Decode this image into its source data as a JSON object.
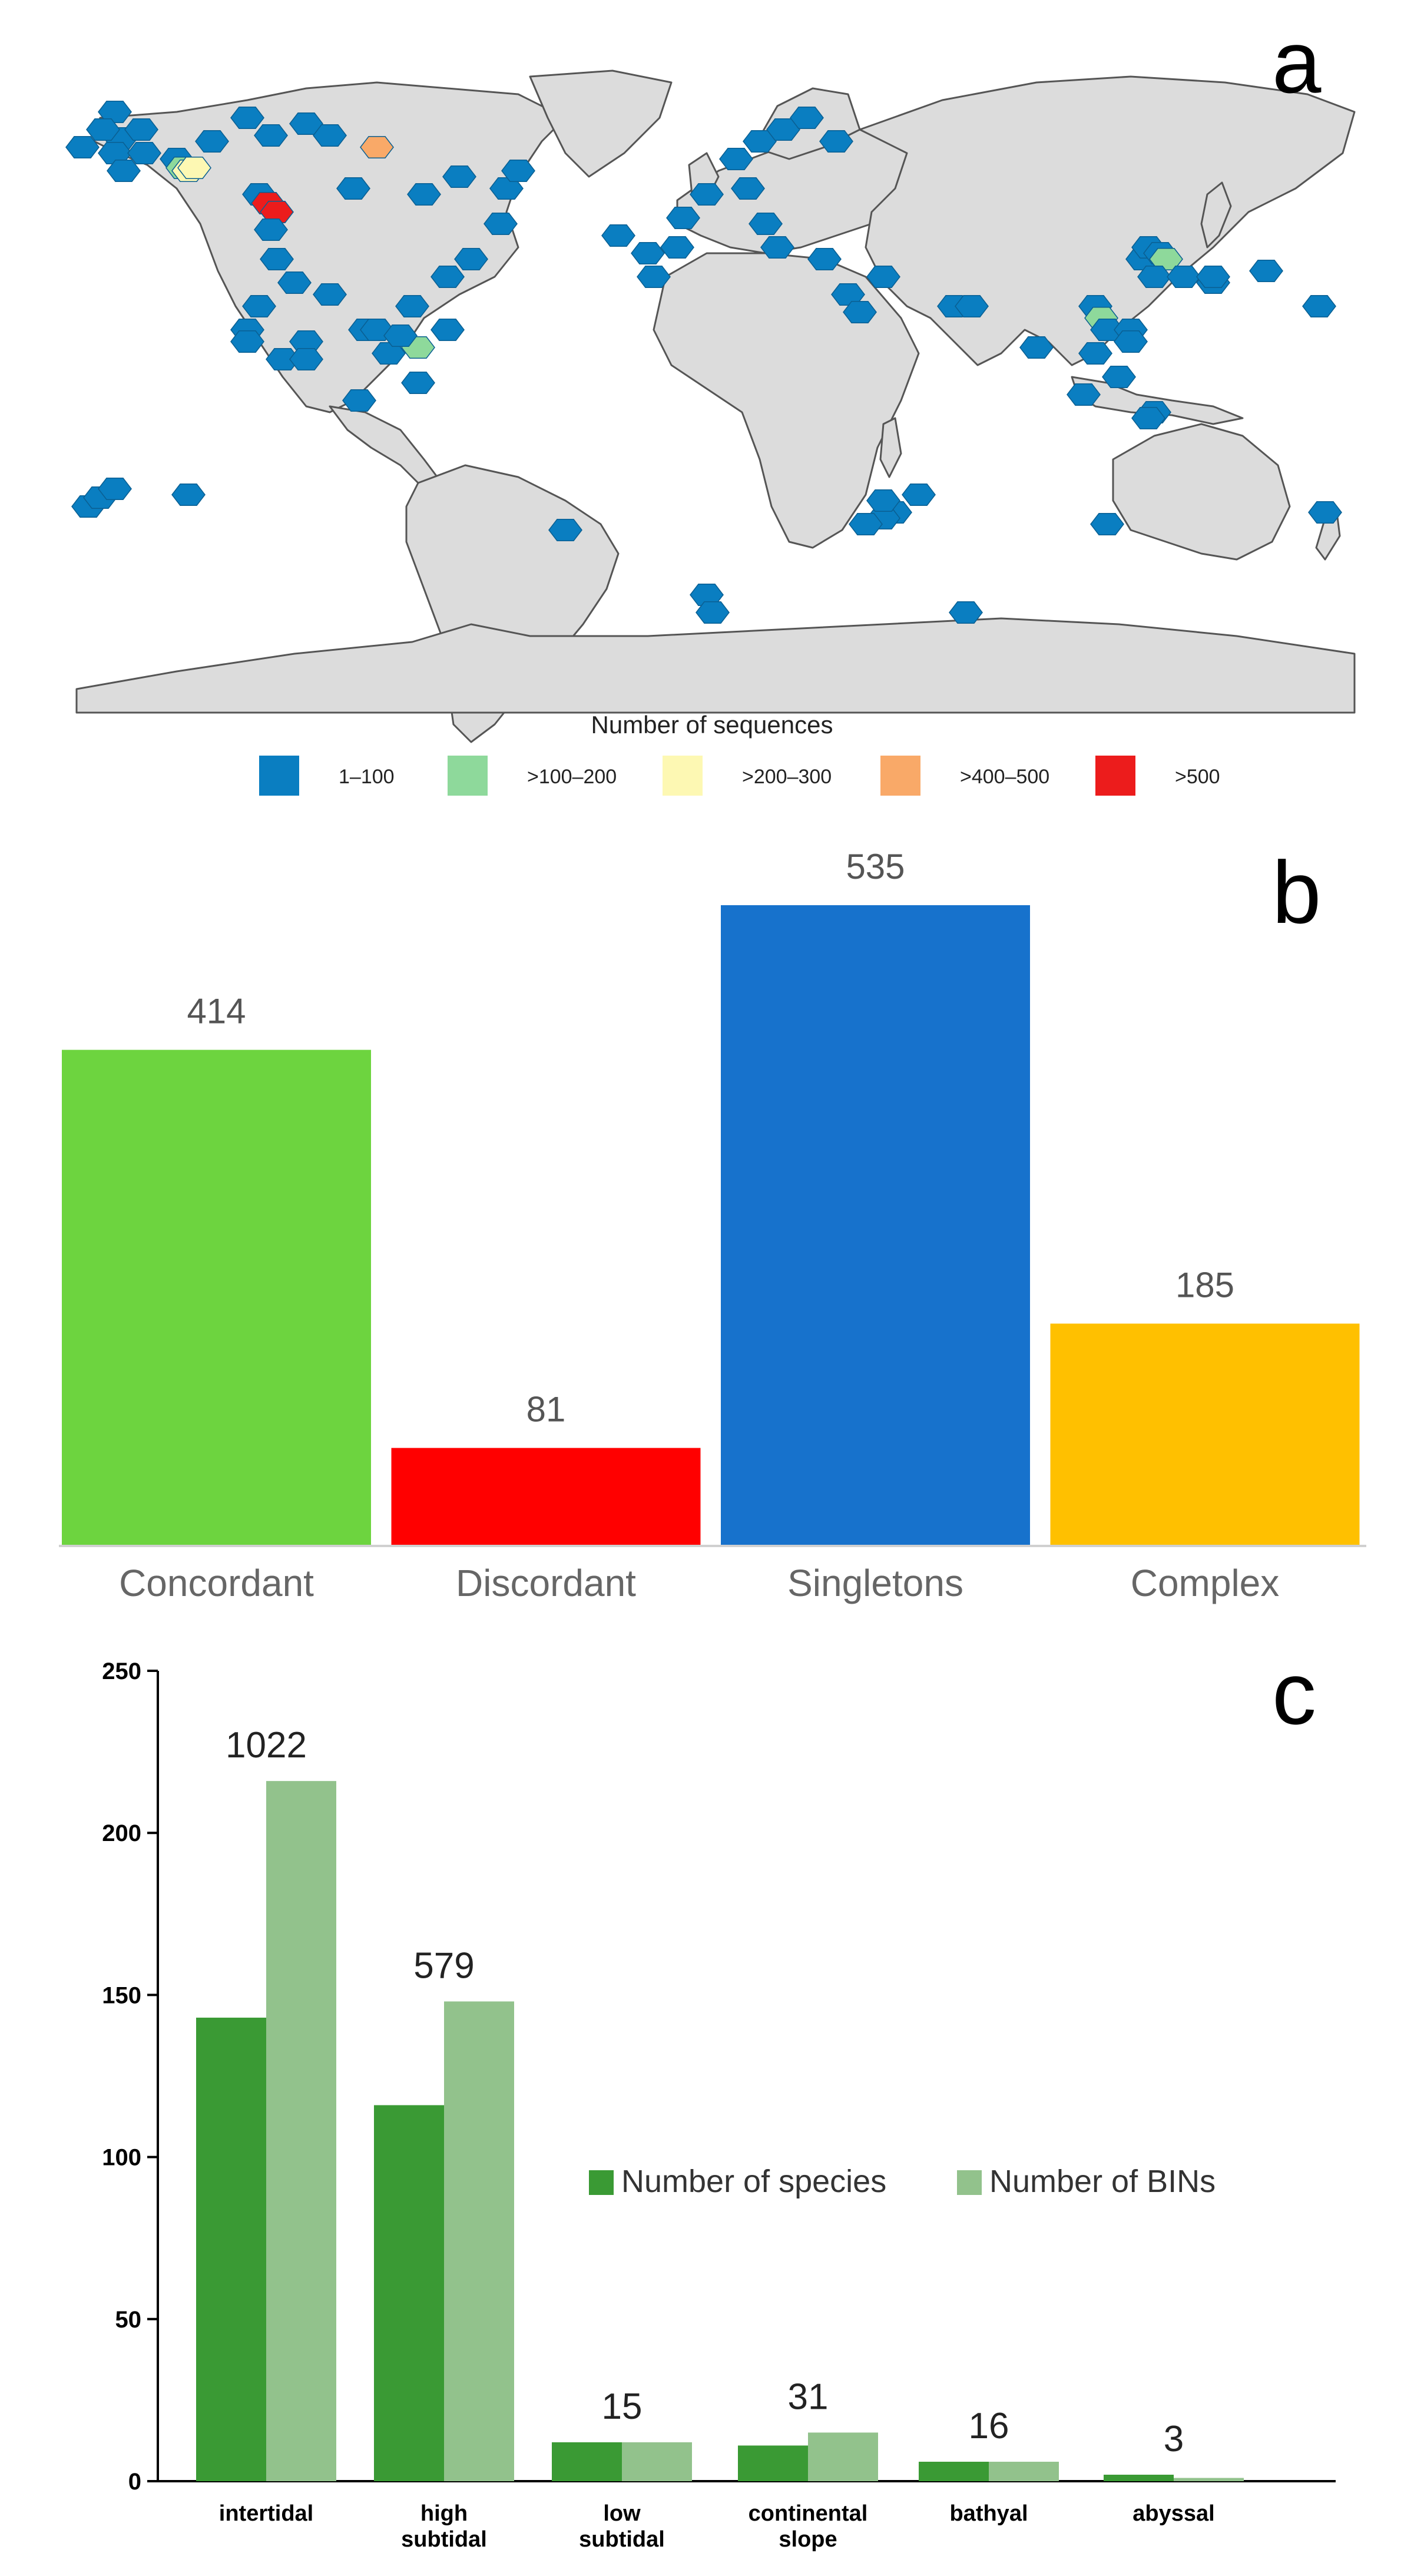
{
  "panels": {
    "a": "a",
    "b": "b",
    "c": "c"
  },
  "map": {
    "legend_title": "Number of sequences",
    "legend": [
      {
        "label": "1–100",
        "color": "#0a7ec1"
      },
      {
        "label": ">100–200",
        "color": "#8ed99b"
      },
      {
        "label": ">200–300",
        "color": "#fdf8b3"
      },
      {
        "label": ">400–500",
        "color": "#f9a968"
      },
      {
        "label": ">500",
        "color": "#ec1c1c"
      }
    ],
    "land_color": "#dcdcdc"
  },
  "chart_data": [
    {
      "type": "bar",
      "categories": [
        "Concordant",
        "Discordant",
        "Singletons",
        "Complex"
      ],
      "values": [
        414,
        81,
        535,
        185
      ],
      "data_labels": [
        "414",
        "81",
        "535",
        "185"
      ],
      "colors": [
        "#6dd43f",
        "#ff0000",
        "#1772cc",
        "#ffc000"
      ],
      "ylim": [
        0,
        535
      ],
      "grid": false,
      "legend": "none"
    },
    {
      "type": "bar",
      "categories": [
        "intertidal",
        "high subtidal",
        "low subtidal",
        "continental slope",
        "bathyal",
        "abyssal"
      ],
      "category_lines": [
        [
          "intertidal"
        ],
        [
          "high",
          "subtidal"
        ],
        [
          "low",
          "subtidal"
        ],
        [
          "continental",
          "slope"
        ],
        [
          "bathyal"
        ],
        [
          "abyssal"
        ]
      ],
      "series": [
        {
          "name": "Number of species",
          "values": [
            143,
            116,
            12,
            11,
            6,
            2
          ],
          "color": "#3a9a34"
        },
        {
          "name": "Number of BINs",
          "values": [
            216,
            148,
            12,
            15,
            6,
            1
          ],
          "color": "#92c28c"
        }
      ],
      "data_labels": [
        "1022",
        "579",
        "15",
        "31",
        "16",
        "3"
      ],
      "yticks": [
        0,
        50,
        100,
        150,
        200,
        250
      ],
      "ylim": [
        0,
        250
      ],
      "grid": false,
      "legend": "center-right"
    }
  ]
}
